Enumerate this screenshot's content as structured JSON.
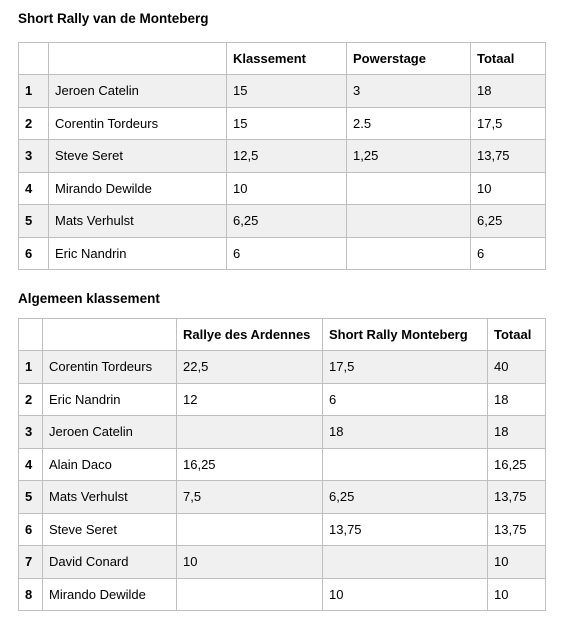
{
  "sections": [
    {
      "title": "Short Rally van de Monteberg",
      "table": {
        "header": [
          "Klassement",
          "Powerstage",
          "Totaal"
        ],
        "rows": [
          [
            1,
            "Jeroen Catelin",
            "15",
            "3",
            "18"
          ],
          [
            2,
            "Corentin Tordeurs",
            "15",
            "2.5",
            "17,5"
          ],
          [
            3,
            "Steve Seret",
            "12,5",
            "1,25",
            "13,75"
          ],
          [
            4,
            "Mirando Dewilde",
            "10",
            null,
            "10"
          ],
          [
            5,
            "Mats Verhulst",
            "6,25",
            null,
            "6,25"
          ],
          [
            6,
            "Eric Nandrin",
            "6",
            null,
            "6"
          ]
        ]
      }
    },
    {
      "title": "Algemeen klassement",
      "table": {
        "header": [
          "Rallye des Ardennes",
          "Short Rally Monteberg",
          "Totaal"
        ],
        "rows": [
          [
            1,
            "Corentin Tordeurs",
            "22,5",
            "17,5",
            "40"
          ],
          [
            2,
            "Eric Nandrin",
            "12",
            "6",
            "18"
          ],
          [
            3,
            "Jeroen Catelin",
            null,
            "18",
            "18"
          ],
          [
            4,
            "Alain Daco",
            "16,25",
            null,
            "16,25"
          ],
          [
            5,
            "Mats Verhulst",
            "7,5",
            "6,25",
            "13,75"
          ],
          [
            6,
            "Steve Seret",
            null,
            "13,75",
            "13,75"
          ],
          [
            7,
            "David Conard",
            "10",
            null,
            "10"
          ],
          [
            8,
            "Mirando Dewilde",
            null,
            "10",
            "10"
          ]
        ]
      }
    }
  ]
}
